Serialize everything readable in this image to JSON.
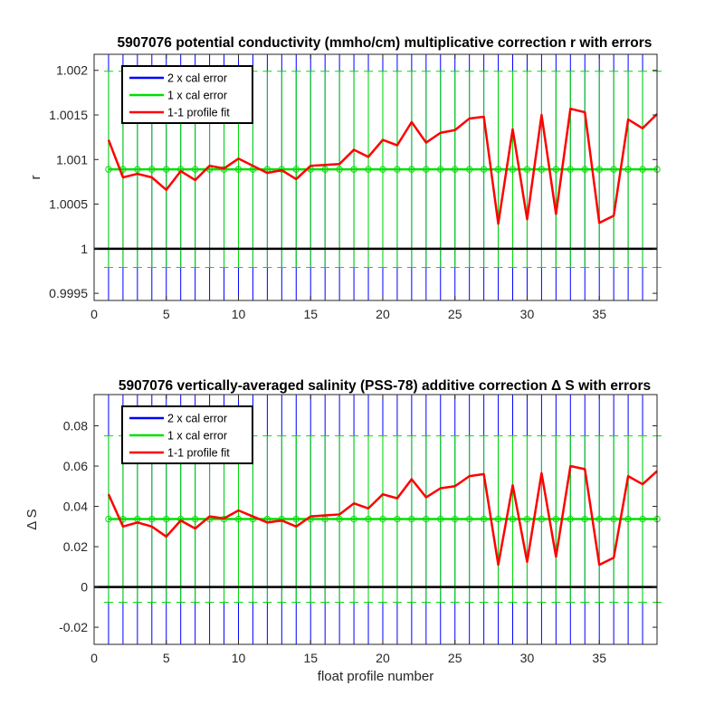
{
  "chart_data": [
    {
      "type": "line",
      "title": "5907076 potential conductivity (mmho/cm) multiplicative correction r with errors",
      "xlabel": "",
      "ylabel": "r",
      "xlim": [
        0,
        39
      ],
      "ylim": [
        0.99942,
        1.00218
      ],
      "xticks": [
        0,
        5,
        10,
        15,
        20,
        25,
        30,
        35
      ],
      "yticks": [
        0.9995,
        1,
        1.0005,
        1.001,
        1.0015,
        1.002
      ],
      "ytick_labels": [
        "0.9995",
        "1",
        "1.0005",
        "1.001",
        "1.0015",
        "1.002"
      ],
      "grid": false,
      "legend_position": "top-left",
      "reference_line": 1,
      "x": [
        1,
        2,
        3,
        4,
        5,
        6,
        7,
        8,
        9,
        10,
        11,
        12,
        13,
        14,
        15,
        16,
        17,
        18,
        19,
        20,
        21,
        22,
        23,
        24,
        25,
        26,
        27,
        28,
        29,
        30,
        31,
        32,
        33,
        34,
        35,
        36,
        37,
        38,
        39
      ],
      "series": [
        {
          "name": "2 x cal error",
          "color": "#0000ff",
          "center": 1.00089,
          "half_width": 0.0027
        },
        {
          "name": "1 x cal error",
          "color": "#00e000",
          "center": 1.00089,
          "half_width": 0.0011
        },
        {
          "name": "1-1 profile fit",
          "color": "#ff0000",
          "values": [
            1.00122,
            1.0008,
            1.00084,
            1.0008,
            1.00066,
            1.00087,
            1.00077,
            1.00093,
            1.0009,
            1.00101,
            1.00093,
            1.00085,
            1.00088,
            1.00078,
            1.00093,
            1.00094,
            1.00095,
            1.00111,
            1.00103,
            1.00122,
            1.00116,
            1.00142,
            1.00119,
            1.0013,
            1.00133,
            1.00146,
            1.00148,
            1.00028,
            1.00134,
            1.00033,
            1.0015,
            1.00039,
            1.00157,
            1.00153,
            1.00029,
            1.00037,
            1.00145,
            1.00135,
            1.00151
          ]
        }
      ]
    },
    {
      "type": "line",
      "title": "5907076 vertically-averaged salinity (PSS-78) additive correction Δ S with errors",
      "xlabel": "float profile number",
      "ylabel": "Δ S",
      "xlim": [
        0,
        39
      ],
      "ylim": [
        -0.0285,
        0.0955
      ],
      "xticks": [
        0,
        5,
        10,
        15,
        20,
        25,
        30,
        35
      ],
      "yticks": [
        -0.02,
        0,
        0.02,
        0.04,
        0.06,
        0.08
      ],
      "ytick_labels": [
        "-0.02",
        "0",
        "0.02",
        "0.04",
        "0.06",
        "0.08"
      ],
      "grid": false,
      "legend_position": "top-left",
      "reference_line": 0,
      "x": [
        1,
        2,
        3,
        4,
        5,
        6,
        7,
        8,
        9,
        10,
        11,
        12,
        13,
        14,
        15,
        16,
        17,
        18,
        19,
        20,
        21,
        22,
        23,
        24,
        25,
        26,
        27,
        28,
        29,
        30,
        31,
        32,
        33,
        34,
        35,
        36,
        37,
        38,
        39
      ],
      "series": [
        {
          "name": "2 x cal error",
          "color": "#0000ff",
          "center": 0.0337,
          "half_width": 0.12
        },
        {
          "name": "1 x cal error",
          "color": "#00e000",
          "center": 0.0337,
          "half_width": 0.0413
        },
        {
          "name": "1-1 profile fit",
          "color": "#ff0000",
          "values": [
            0.046,
            0.03,
            0.032,
            0.03,
            0.025,
            0.033,
            0.029,
            0.035,
            0.034,
            0.038,
            0.035,
            0.032,
            0.033,
            0.03,
            0.035,
            0.0355,
            0.036,
            0.0415,
            0.039,
            0.046,
            0.044,
            0.0535,
            0.0445,
            0.049,
            0.05,
            0.055,
            0.056,
            0.011,
            0.0505,
            0.0125,
            0.0565,
            0.015,
            0.06,
            0.0585,
            0.011,
            0.0145,
            0.055,
            0.051,
            0.0575
          ]
        }
      ]
    }
  ]
}
